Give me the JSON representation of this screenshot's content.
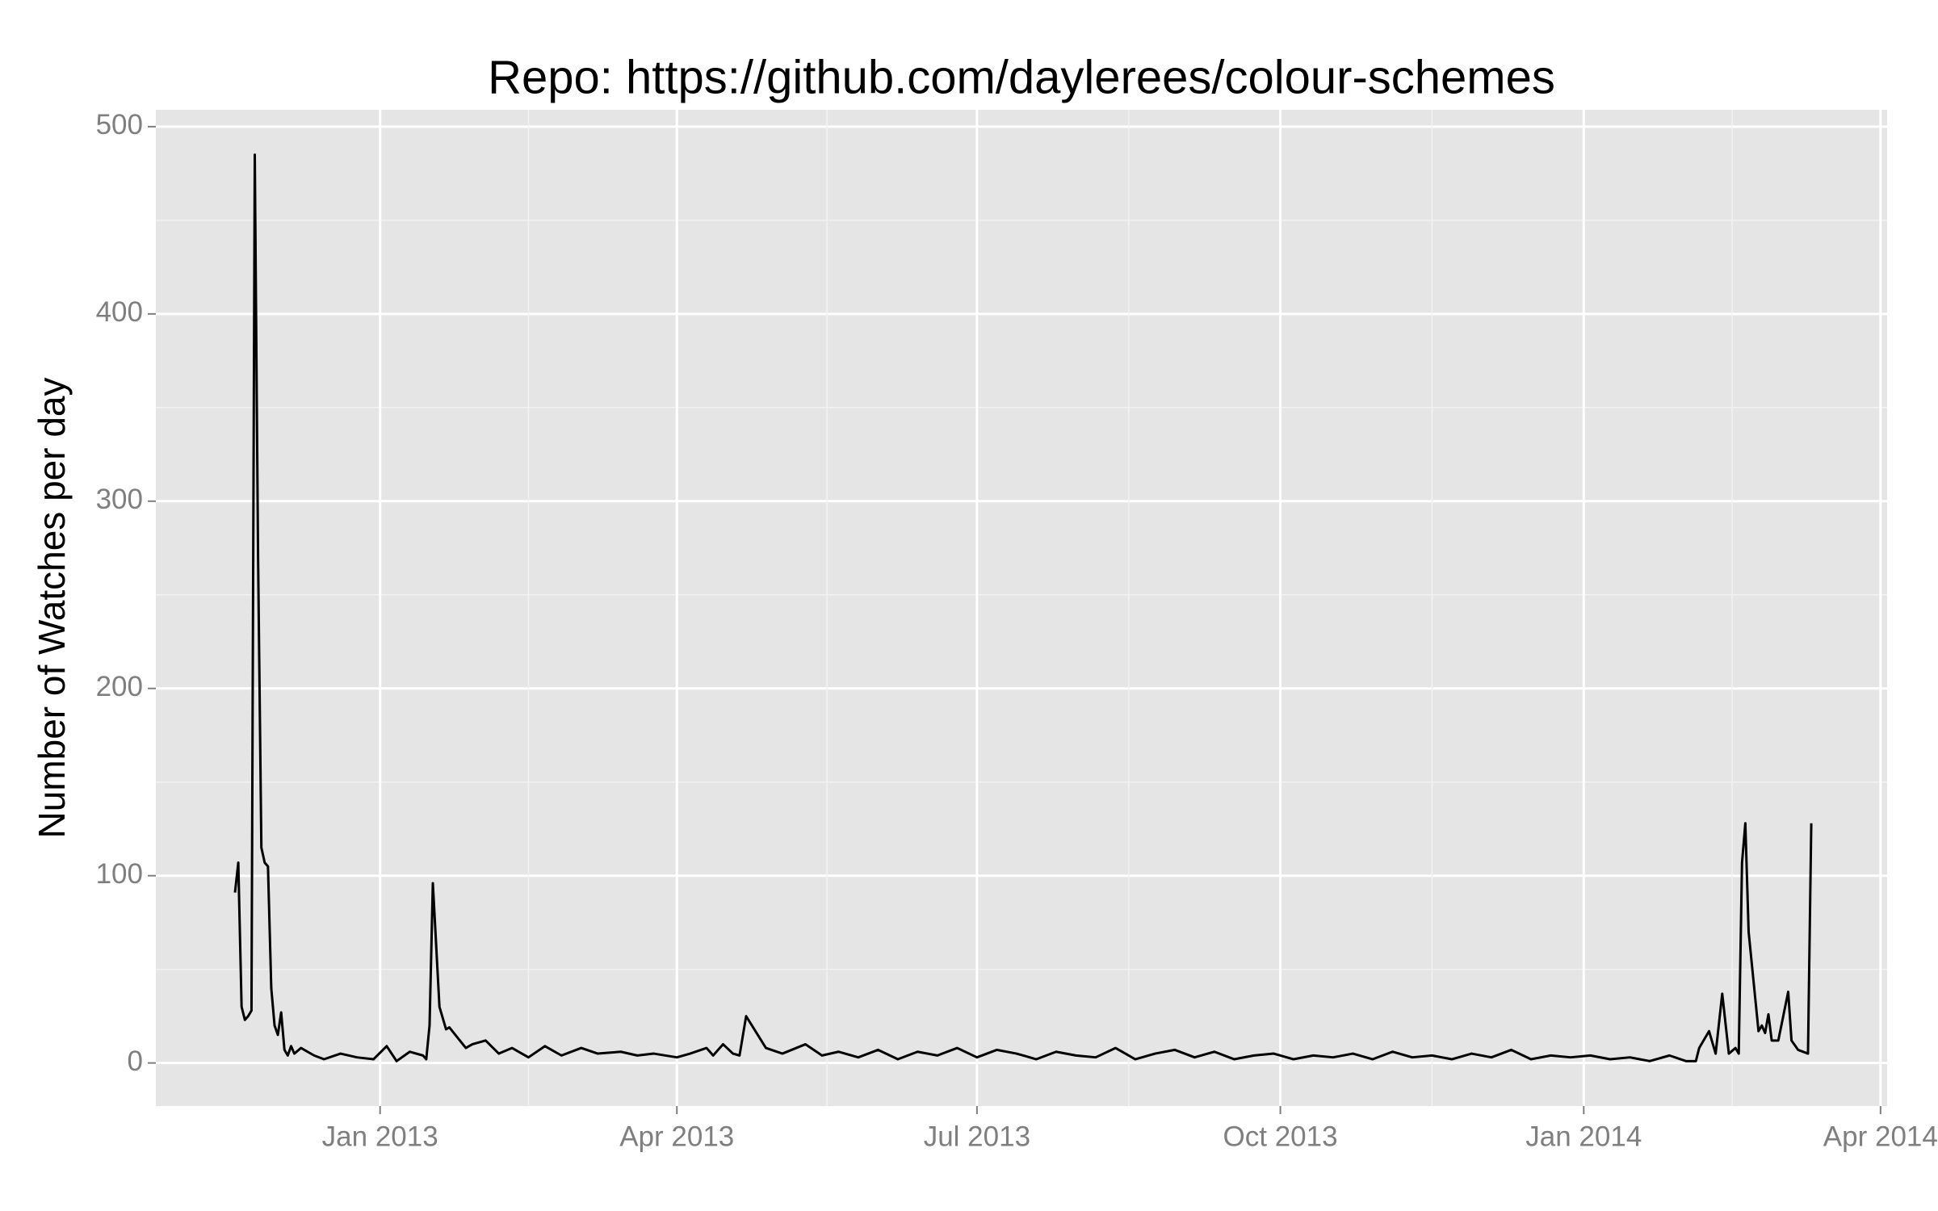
{
  "chart_data": {
    "type": "line",
    "title": "Repo: https://github.com/daylerees/colour-schemes",
    "y_label": "Number of Watches per day",
    "x": [
      "2012-11-18",
      "2012-11-19",
      "2012-11-20",
      "2012-11-21",
      "2012-11-22",
      "2012-11-23",
      "2012-11-24",
      "2012-11-25",
      "2012-11-26",
      "2012-11-27",
      "2012-11-28",
      "2012-11-29",
      "2012-11-30",
      "2012-12-01",
      "2012-12-02",
      "2012-12-03",
      "2012-12-04",
      "2012-12-05",
      "2012-12-06",
      "2012-12-08",
      "2012-12-12",
      "2012-12-15",
      "2012-12-20",
      "2012-12-25",
      "2012-12-30",
      "2013-01-03",
      "2013-01-06",
      "2013-01-10",
      "2013-01-14",
      "2013-01-15",
      "2013-01-16",
      "2013-01-17",
      "2013-01-19",
      "2013-01-21",
      "2013-01-22",
      "2013-01-27",
      "2013-01-29",
      "2013-02-02",
      "2013-02-06",
      "2013-02-10",
      "2013-02-15",
      "2013-02-20",
      "2013-02-25",
      "2013-03-03",
      "2013-03-08",
      "2013-03-15",
      "2013-03-20",
      "2013-03-25",
      "2013-04-01",
      "2013-04-05",
      "2013-04-10",
      "2013-04-12",
      "2013-04-15",
      "2013-04-18",
      "2013-04-20",
      "2013-04-22",
      "2013-04-28",
      "2013-05-03",
      "2013-05-10",
      "2013-05-15",
      "2013-05-20",
      "2013-05-26",
      "2013-06-01",
      "2013-06-07",
      "2013-06-13",
      "2013-06-19",
      "2013-06-25",
      "2013-07-01",
      "2013-07-07",
      "2013-07-13",
      "2013-07-19",
      "2013-07-25",
      "2013-07-31",
      "2013-08-06",
      "2013-08-12",
      "2013-08-18",
      "2013-08-24",
      "2013-08-30",
      "2013-09-05",
      "2013-09-11",
      "2013-09-17",
      "2013-09-23",
      "2013-09-29",
      "2013-10-05",
      "2013-10-11",
      "2013-10-17",
      "2013-10-23",
      "2013-10-29",
      "2013-11-04",
      "2013-11-10",
      "2013-11-16",
      "2013-11-22",
      "2013-11-28",
      "2013-12-04",
      "2013-12-10",
      "2013-12-16",
      "2013-12-22",
      "2013-12-28",
      "2014-01-03",
      "2014-01-09",
      "2014-01-15",
      "2014-01-21",
      "2014-01-27",
      "2014-02-01",
      "2014-02-04",
      "2014-02-05",
      "2014-02-08",
      "2014-02-10",
      "2014-02-12",
      "2014-02-14",
      "2014-02-16",
      "2014-02-17",
      "2014-02-18",
      "2014-02-19",
      "2014-02-20",
      "2014-02-23",
      "2014-02-24",
      "2014-02-25",
      "2014-02-26",
      "2014-02-27",
      "2014-03-01",
      "2014-03-04",
      "2014-03-05",
      "2014-03-07",
      "2014-03-10",
      "2014-03-11"
    ],
    "series": [
      {
        "name": "watches",
        "color": "#000000",
        "values": [
          91,
          107,
          30,
          23,
          25,
          28,
          485,
          270,
          115,
          107,
          105,
          40,
          20,
          15,
          27,
          7,
          4,
          9,
          5,
          8,
          4,
          2,
          5,
          3,
          2,
          9,
          1,
          6,
          4,
          2,
          20,
          96,
          30,
          18,
          19,
          8,
          10,
          12,
          5,
          8,
          3,
          9,
          4,
          8,
          5,
          6,
          4,
          5,
          3,
          5,
          8,
          4,
          10,
          5,
          4,
          25,
          8,
          5,
          10,
          4,
          6,
          3,
          7,
          2,
          6,
          4,
          8,
          3,
          7,
          5,
          2,
          6,
          4,
          3,
          8,
          2,
          5,
          7,
          3,
          6,
          2,
          4,
          5,
          2,
          4,
          3,
          5,
          2,
          6,
          3,
          4,
          2,
          5,
          3,
          7,
          2,
          4,
          3,
          4,
          2,
          3,
          1,
          4,
          1,
          1,
          8,
          17,
          5,
          37,
          5,
          8,
          5,
          107,
          128,
          70,
          17,
          20,
          16,
          26,
          12,
          12,
          38,
          12,
          7,
          5,
          128
        ]
      }
    ],
    "xlim": [
      "2012-10-25",
      "2014-04-03"
    ],
    "xticks": [
      {
        "value": "2013-01-01",
        "label": "Jan 2013"
      },
      {
        "value": "2013-04-01",
        "label": "Apr 2013"
      },
      {
        "value": "2013-07-01",
        "label": "Jul 2013"
      },
      {
        "value": "2013-10-01",
        "label": "Oct 2013"
      },
      {
        "value": "2014-01-01",
        "label": "Jan 2014"
      },
      {
        "value": "2014-04-01",
        "label": "Apr 2014"
      }
    ],
    "ylim": [
      -23,
      509
    ],
    "yticks": [
      0,
      100,
      200,
      300,
      400,
      500
    ],
    "grid": true
  }
}
